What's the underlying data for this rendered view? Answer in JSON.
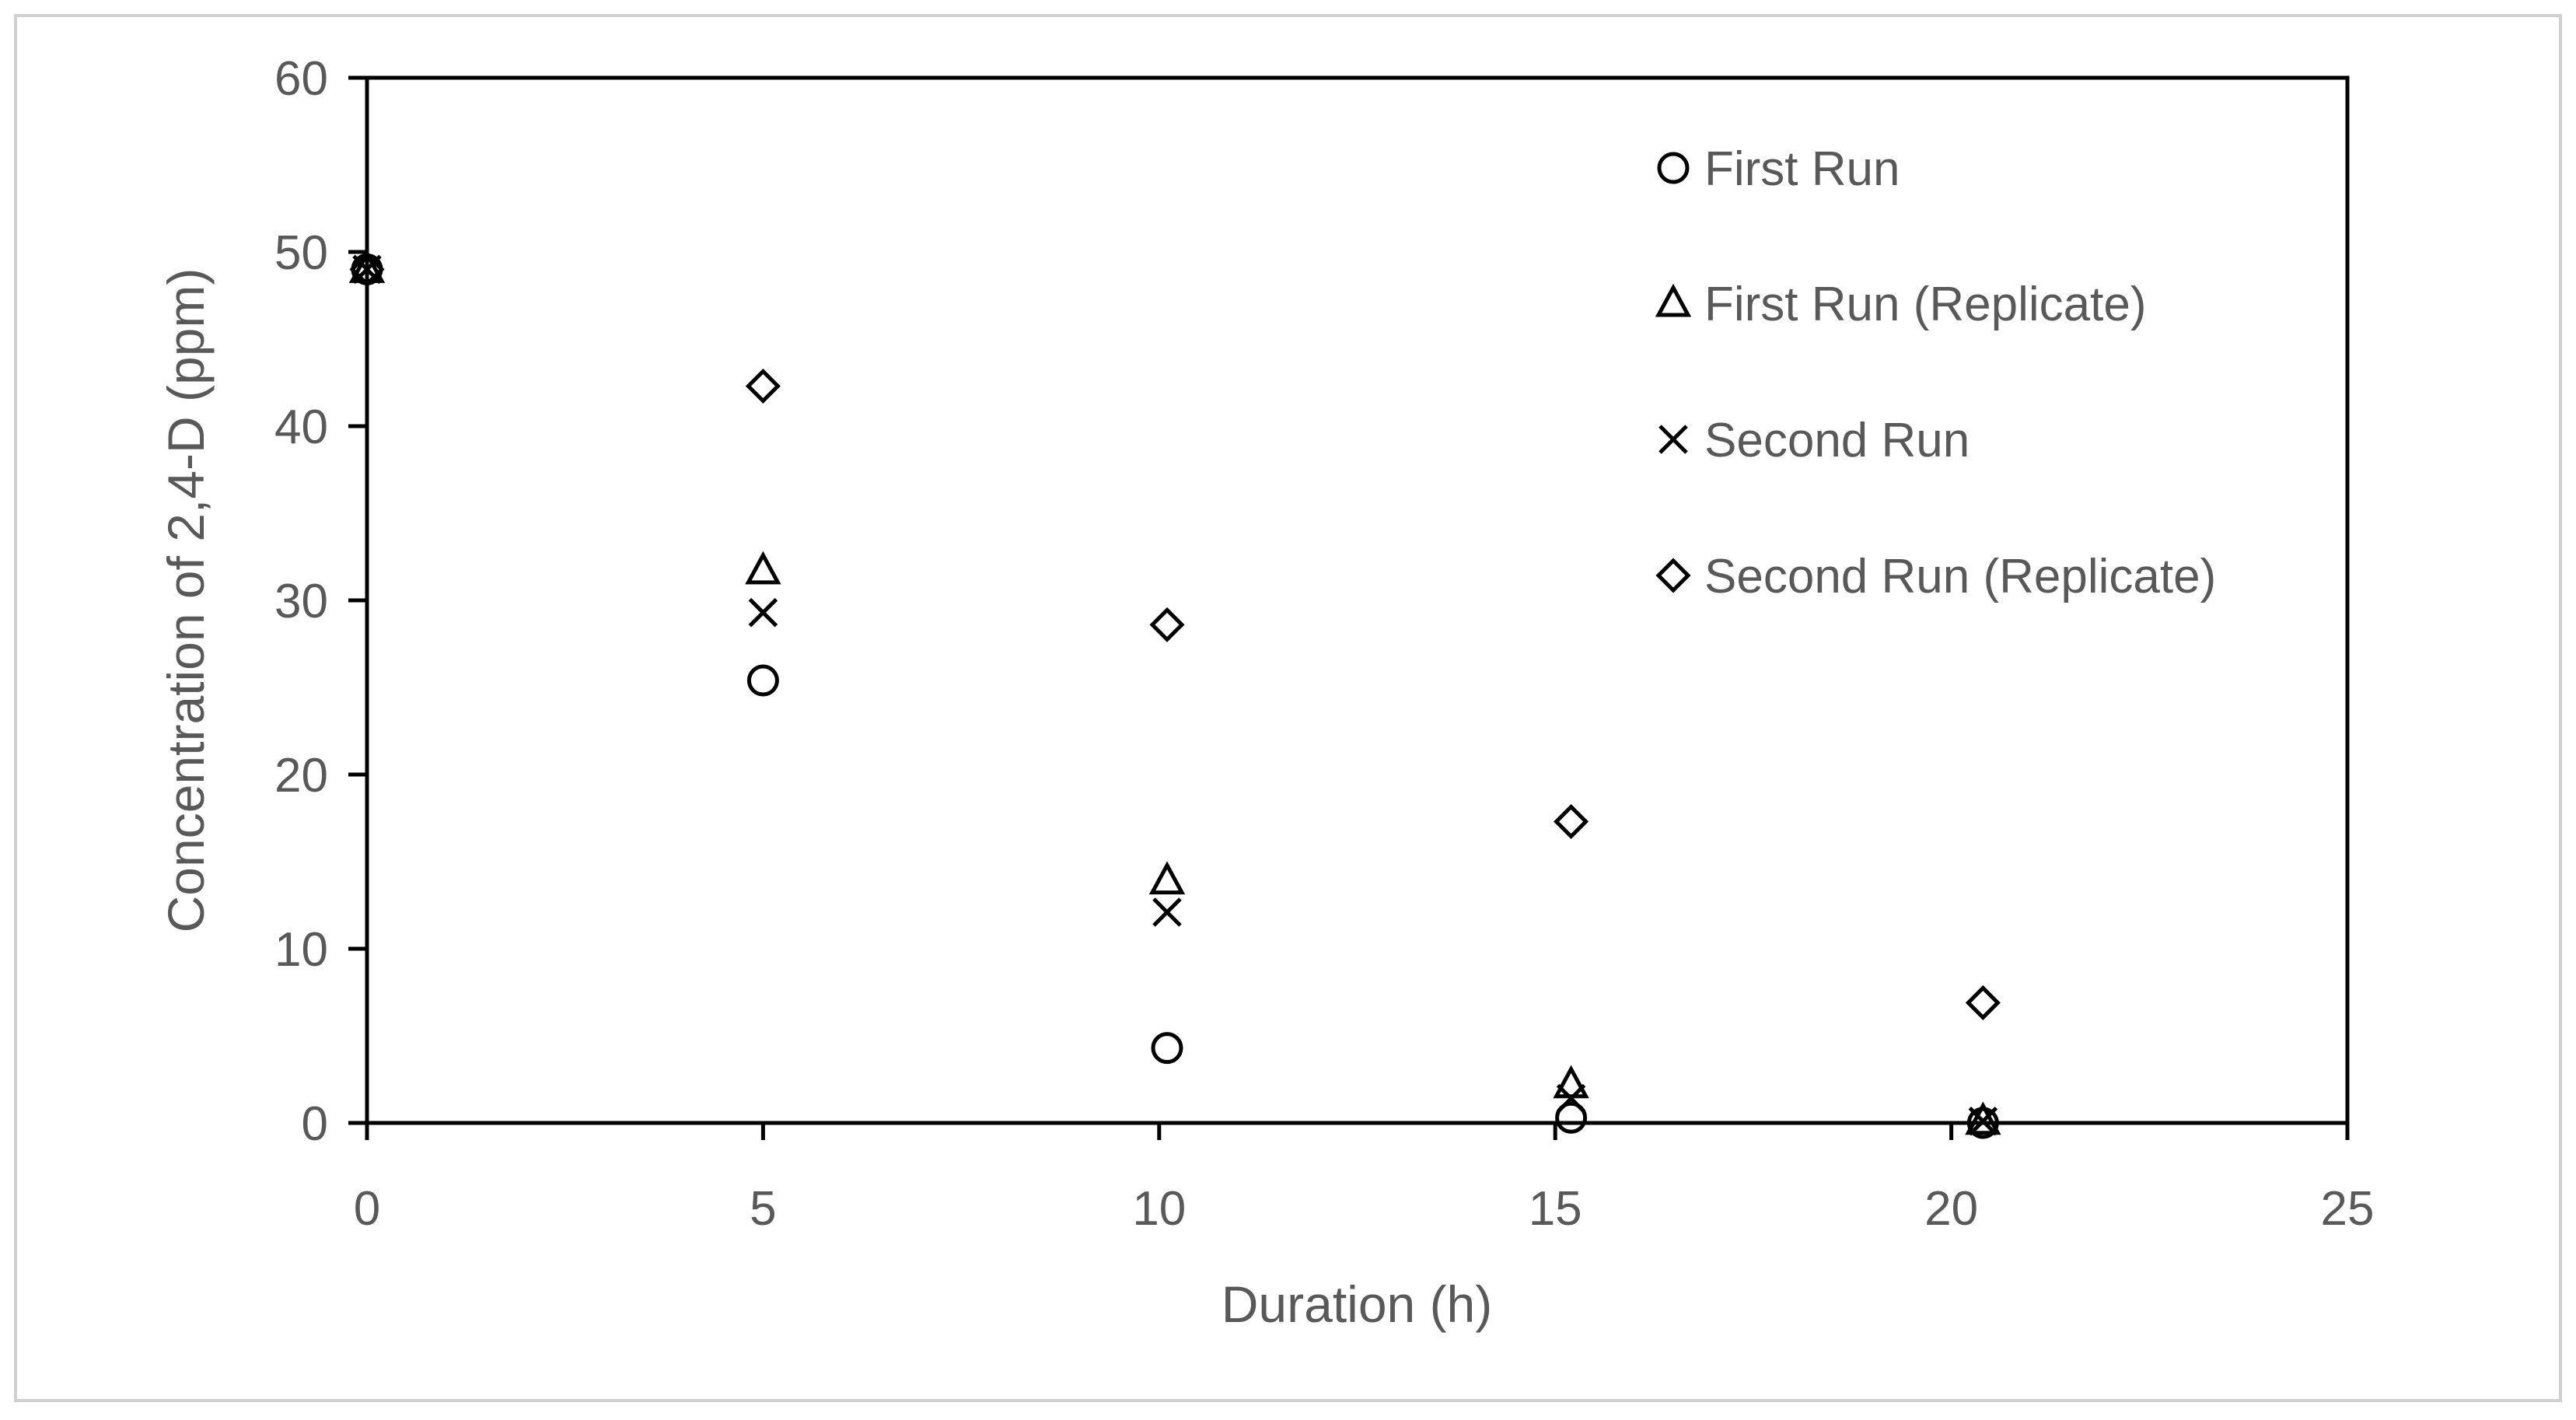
{
  "chart_data": {
    "type": "scatter",
    "title": "",
    "xlabel": "Duration (h)",
    "ylabel": "Concentration of 2,4-D (ppm)",
    "xlim": [
      0,
      25
    ],
    "ylim": [
      0,
      60
    ],
    "xticks": [
      0,
      5,
      10,
      15,
      20,
      25
    ],
    "yticks": [
      0,
      10,
      20,
      30,
      40,
      50,
      60
    ],
    "grid": false,
    "legend_position": "top-right",
    "series": [
      {
        "name": "First Run",
        "marker": "circle",
        "x": [
          0,
          5,
          10.1,
          15.2,
          20.4
        ],
        "y": [
          49,
          25.4,
          4.3,
          0.3,
          0
        ]
      },
      {
        "name": "First Run (Replicate)",
        "marker": "triangle",
        "x": [
          0,
          5,
          10.1,
          15.2,
          20.4
        ],
        "y": [
          49,
          31.7,
          13.9,
          2.2,
          0.1
        ]
      },
      {
        "name": "Second Run",
        "marker": "x",
        "x": [
          0,
          5,
          10.1,
          15.2,
          20.4
        ],
        "y": [
          49,
          29.3,
          12.1,
          1.4,
          0.1
        ]
      },
      {
        "name": "Second Run (Replicate)",
        "marker": "diamond",
        "x": [
          0,
          5,
          10.1,
          15.2,
          20.4
        ],
        "y": [
          49,
          42.3,
          28.6,
          17.3,
          6.9
        ]
      }
    ]
  }
}
